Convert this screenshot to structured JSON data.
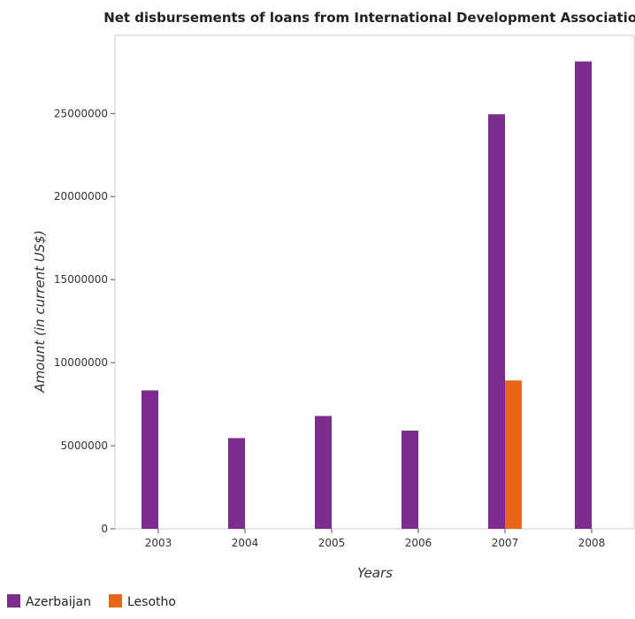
{
  "chart_data": {
    "type": "bar",
    "title": "Net disbursements of loans from International Development Association",
    "xlabel": "Years",
    "ylabel": "Amount (in current US$)",
    "categories": [
      "2003",
      "2004",
      "2005",
      "2006",
      "2007",
      "2008"
    ],
    "series": [
      {
        "name": "Azerbaijan",
        "color": "#7b2d8e",
        "values": [
          8330000,
          5460000,
          6790000,
          5910000,
          24950000,
          28130000
        ]
      },
      {
        "name": "Lesotho",
        "color": "#e8661a",
        "values": [
          0,
          0,
          0,
          0,
          8930000,
          0
        ]
      }
    ],
    "ylim": [
      0,
      30000000
    ],
    "yticks": [
      0,
      5000000,
      10000000,
      15000000,
      20000000,
      25000000
    ],
    "ytick_labels": [
      "0",
      "5000000",
      "10000000",
      "15000000",
      "20000000",
      "25000000"
    ],
    "legend_position": "bottom-left",
    "grid": false
  }
}
